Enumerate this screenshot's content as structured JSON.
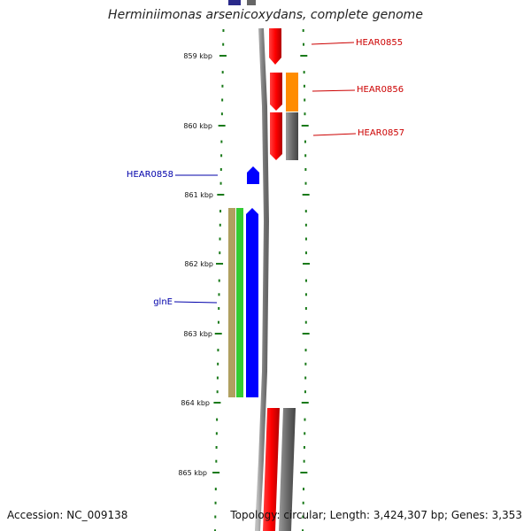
{
  "title": "Herminiimonas arsenicoxydans, complete genome",
  "ticks": [
    "859 kbp",
    "860 kbp",
    "861 kbp",
    "862 kbp",
    "863 kbp",
    "864 kbp",
    "865 kbp"
  ],
  "genes": {
    "hear0855": "HEAR0855",
    "hear0856": "HEAR0856",
    "hear0857": "HEAR0857",
    "hear0858": "HEAR0858",
    "glne": "glnE"
  },
  "footer": {
    "accession": "Accession: NC_009138",
    "summary": "Topology: circular; Length: 3,424,307 bp; Genes: 3,353"
  },
  "colors": {
    "tick": "#1a7a1a",
    "label_red": "#cc0000",
    "label_blue": "#0000aa",
    "gene_red": "#ff0000",
    "gene_orange": "#ff8c00",
    "gene_gray": "#707070",
    "gene_blue": "#0000ff",
    "gene_green": "#33cc33",
    "gene_olive": "#b0a060",
    "backbone": "#909090"
  }
}
